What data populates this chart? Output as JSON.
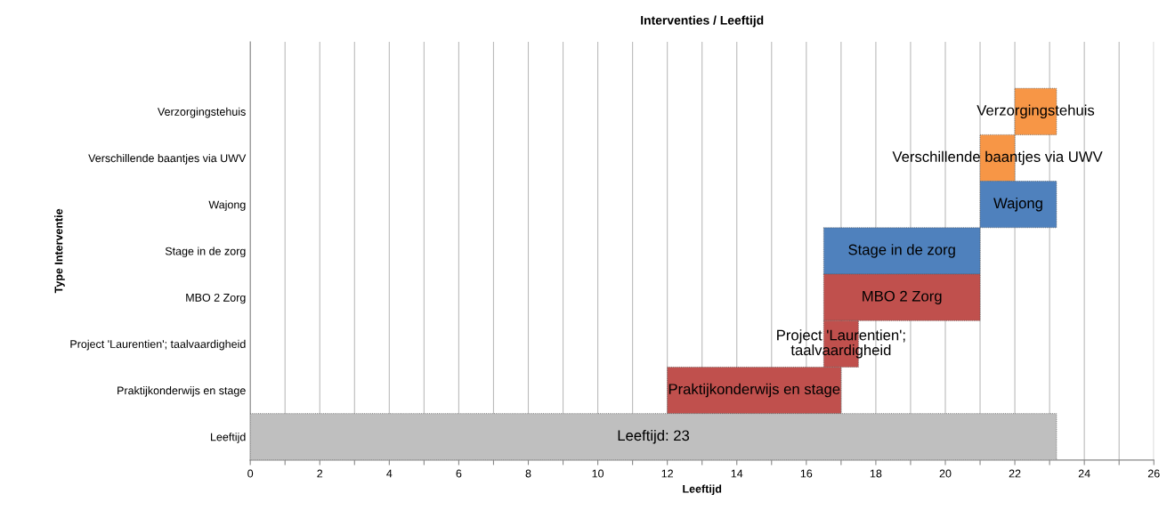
{
  "chart_data": {
    "type": "bar",
    "orientation": "horizontal",
    "title": "Interventies / Leeftijd",
    "xlabel": "Leeftijd",
    "ylabel": "Type Interventie",
    "categories": [
      "Verzorgingstehuis",
      "Verschillende baantjes via UWV",
      "Wajong",
      "Stage in de zorg",
      "MBO 2 Zorg",
      "Project 'Laurentien'; taalvaardigheid",
      "Praktijkonderwijs en stage",
      "Leeftijd"
    ],
    "base": [
      22,
      21,
      21,
      16.5,
      16.5,
      16.5,
      12,
      0
    ],
    "values": [
      1.2,
      1,
      2.2,
      4.5,
      4.5,
      1,
      5,
      23.2
    ],
    "colors": [
      "#f79646",
      "#f79646",
      "#4f81bd",
      "#4f81bd",
      "#c0504d",
      "#c0504d",
      "#c0504d",
      "#bfbfbf"
    ],
    "xlim": [
      0,
      26
    ],
    "xticks": [
      0,
      {
        "value": 1,
        "label": null
      },
      2,
      {
        "value": 3,
        "label": null
      },
      4,
      {
        "value": 5,
        "label": null
      },
      6,
      {
        "value": 7,
        "label": null
      },
      8,
      {
        "value": 9,
        "label": null
      },
      10,
      {
        "value": 11,
        "label": null
      },
      12,
      {
        "value": 13,
        "label": null
      },
      14,
      {
        "value": 15,
        "label": null
      },
      16,
      {
        "value": 17,
        "label": null
      },
      18,
      {
        "value": 19,
        "label": null
      },
      20,
      {
        "value": 21,
        "label": null
      },
      22,
      {
        "value": 23,
        "label": null
      },
      24,
      {
        "value": 25,
        "label": null
      },
      26
    ],
    "grid": "x",
    "annotations": [
      {
        "text": "Verzorgingstehuis",
        "x": 22.6,
        "y": "Verzorgingstehuis"
      },
      {
        "text": "Verschillende baantjes via UWV",
        "x": 21.5,
        "y": "Verschillende baantjes via UWV"
      },
      {
        "text": "Wajong",
        "x": 22.1,
        "y": "Wajong"
      },
      {
        "text": "Stage in de zorg",
        "x": 18.75,
        "y": "Stage in de zorg"
      },
      {
        "text": "MBO 2 Zorg",
        "x": 18.75,
        "y": "MBO 2 Zorg"
      },
      {
        "text": "Project 'Laurentien';\ntaalvaardigheid",
        "x": 17,
        "y": "Project 'Laurentien'; taalvaardigheid"
      },
      {
        "text": "Praktijkonderwijs en stage",
        "x": 14.5,
        "y": "Praktijkonderwijs en stage"
      },
      {
        "text": "Leeftijd: 23",
        "x": 11.6,
        "y": "Leeftijd"
      }
    ]
  }
}
